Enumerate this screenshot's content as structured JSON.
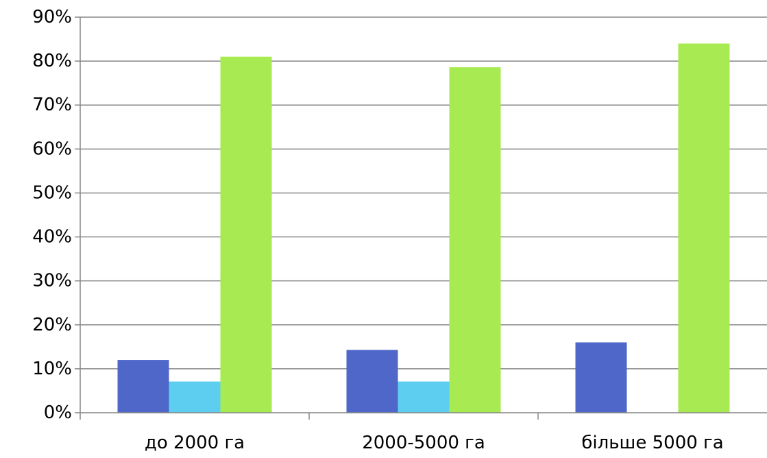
{
  "chart_data": {
    "type": "bar",
    "title": "",
    "xlabel": "",
    "ylabel": "",
    "categories": [
      "до 2000 га",
      "2000-5000 га",
      "більше 5000 га"
    ],
    "series": [
      {
        "values": [
          12,
          14.3,
          16
        ],
        "color": "#4e67c8"
      },
      {
        "values": [
          7.1,
          7.1,
          0
        ],
        "color": "#5ecef0"
      },
      {
        "values": [
          81,
          78.6,
          84
        ],
        "color": "#a7ea52"
      }
    ],
    "ylim": [
      0,
      90
    ],
    "yticks": [
      0,
      10,
      20,
      30,
      40,
      50,
      60,
      70,
      80,
      90
    ],
    "ytick_format": "percent",
    "grid": true,
    "legend": "none"
  }
}
